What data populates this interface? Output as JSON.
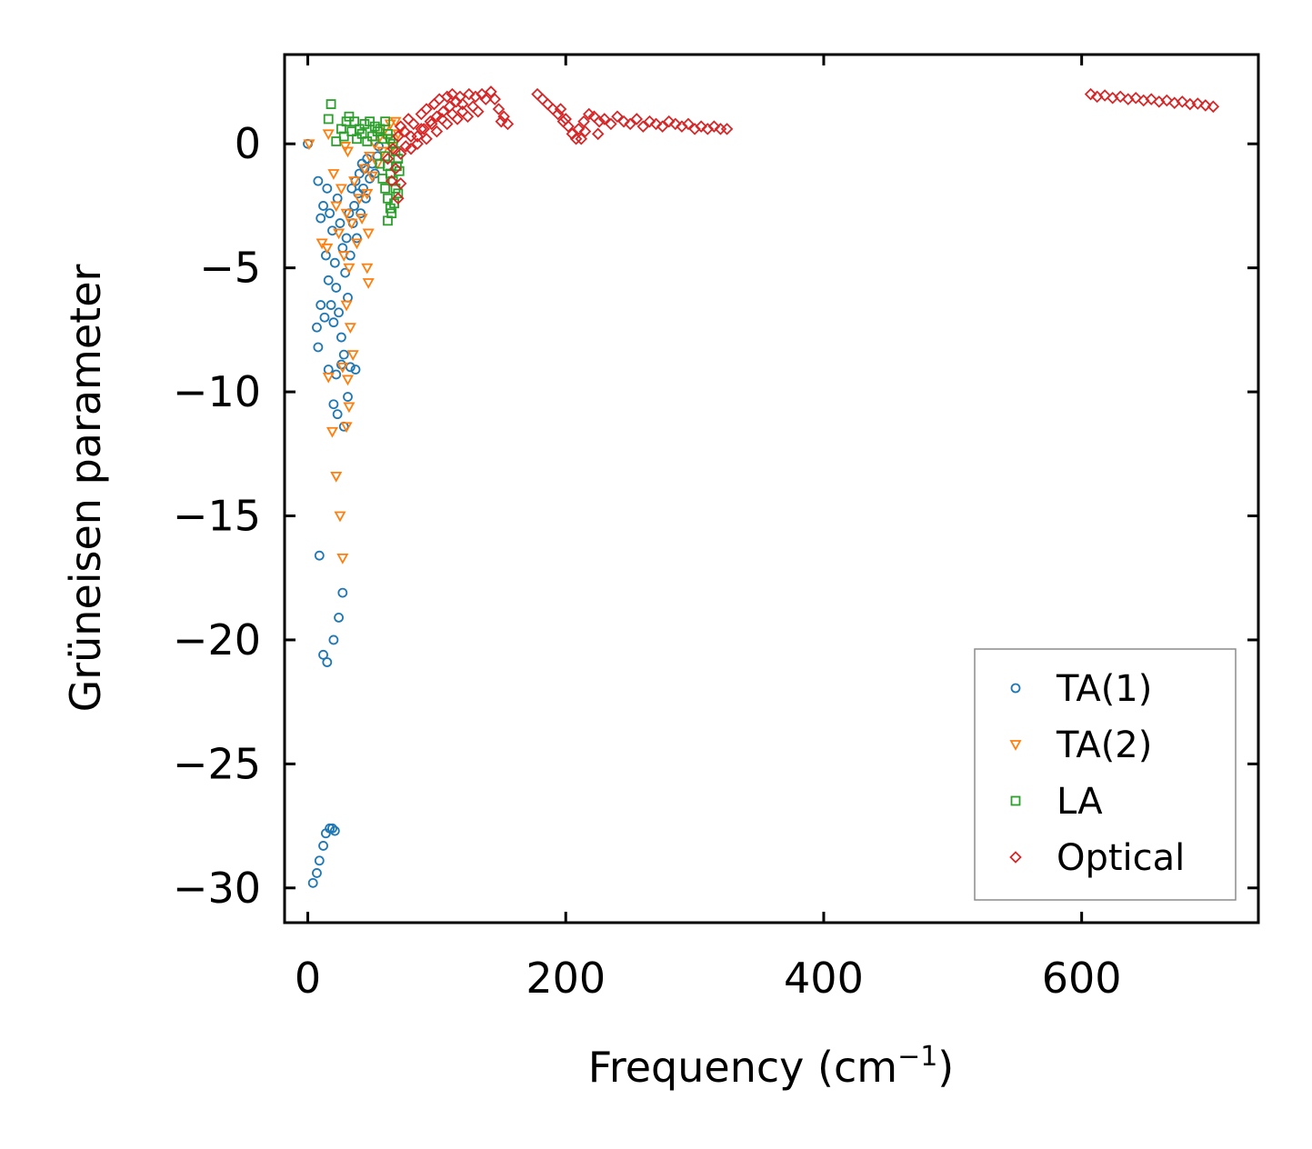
{
  "chart_data": {
    "type": "scatter",
    "title": "",
    "xlabel": "Frequency",
    "xlabel_unit_base": "cm",
    "xlabel_unit_exp": "−1",
    "ylabel": "Grüneisen parameter",
    "xlim": [
      -18,
      737
    ],
    "ylim": [
      -31.4,
      3.6
    ],
    "xticks": [
      0,
      200,
      400,
      600
    ],
    "xtick_labels": [
      "0",
      "200",
      "400",
      "600"
    ],
    "yticks": [
      0,
      -5,
      -10,
      -15,
      -20,
      -25,
      -30
    ],
    "ytick_labels": [
      "0",
      "−5",
      "−10",
      "−15",
      "−20",
      "−25",
      "−30"
    ],
    "grid": false,
    "legend_position": "lower-right",
    "series": [
      {
        "name": "TA(1)",
        "color": "#1f77b4",
        "marker": "circle",
        "points": [
          [
            0,
            0
          ],
          [
            8,
            -1.5
          ],
          [
            10,
            -3
          ],
          [
            12,
            -2.5
          ],
          [
            14,
            -4.5
          ],
          [
            15,
            -1.8
          ],
          [
            16,
            -5.5
          ],
          [
            17,
            -2.8
          ],
          [
            18,
            -6.5
          ],
          [
            19,
            -3.5
          ],
          [
            20,
            -7.2
          ],
          [
            21,
            -4.8
          ],
          [
            22,
            -5.8
          ],
          [
            23,
            -2.2
          ],
          [
            24,
            -6.8
          ],
          [
            25,
            -3.2
          ],
          [
            26,
            -7.8
          ],
          [
            27,
            -4.2
          ],
          [
            28,
            -8.5
          ],
          [
            29,
            -5.2
          ],
          [
            30,
            -3.8
          ],
          [
            31,
            -6.2
          ],
          [
            32,
            -2.8
          ],
          [
            33,
            -4.5
          ],
          [
            34,
            -1.8
          ],
          [
            35,
            -3.2
          ],
          [
            36,
            -2.5
          ],
          [
            37,
            -1.5
          ],
          [
            38,
            -3.8
          ],
          [
            39,
            -2.0
          ],
          [
            40,
            -1.2
          ],
          [
            41,
            -2.8
          ],
          [
            42,
            -0.8
          ],
          [
            43,
            -1.8
          ],
          [
            44,
            -1.0
          ],
          [
            45,
            -2.2
          ],
          [
            46,
            -0.6
          ],
          [
            48,
            -1.4
          ],
          [
            50,
            -0.8
          ],
          [
            52,
            -1.2
          ],
          [
            54,
            -0.5
          ],
          [
            55,
            -0.1
          ],
          [
            7,
            -7.4
          ],
          [
            8,
            -8.2
          ],
          [
            10,
            -6.5
          ],
          [
            13,
            -7.0
          ],
          [
            16,
            -9.1
          ],
          [
            22,
            -9.3
          ],
          [
            26,
            -8.9
          ],
          [
            33,
            -9.0
          ],
          [
            37,
            -9.1
          ],
          [
            20,
            -10.5
          ],
          [
            23,
            -10.9
          ],
          [
            28,
            -11.4
          ],
          [
            31,
            -10.2
          ],
          [
            9,
            -16.6
          ],
          [
            27,
            -18.1
          ],
          [
            24,
            -19.1
          ],
          [
            20,
            -20.0
          ],
          [
            12,
            -20.6
          ],
          [
            15,
            -20.9
          ],
          [
            17,
            -27.6
          ],
          [
            19,
            -27.6
          ],
          [
            21,
            -27.7
          ],
          [
            14,
            -27.8
          ],
          [
            12,
            -28.3
          ],
          [
            9,
            -28.9
          ],
          [
            7,
            -29.4
          ],
          [
            4,
            -29.8
          ]
        ]
      },
      {
        "name": "TA(2)",
        "color": "#ff7f0e",
        "marker": "triangle-down",
        "points": [
          [
            1,
            0.0
          ],
          [
            16,
            0.4
          ],
          [
            20,
            -1.2
          ],
          [
            22,
            -2.5
          ],
          [
            24,
            -3.6
          ],
          [
            26,
            -1.8
          ],
          [
            28,
            -4.5
          ],
          [
            30,
            -2.8
          ],
          [
            32,
            -5.0
          ],
          [
            34,
            -3.2
          ],
          [
            36,
            -1.5
          ],
          [
            38,
            -4.0
          ],
          [
            40,
            -2.2
          ],
          [
            42,
            -3.0
          ],
          [
            44,
            -1.0
          ],
          [
            46,
            -2.0
          ],
          [
            48,
            -0.5
          ],
          [
            50,
            -1.3
          ],
          [
            52,
            0.0
          ],
          [
            54,
            -0.8
          ],
          [
            56,
            0.3
          ],
          [
            58,
            -0.3
          ],
          [
            60,
            0.6
          ],
          [
            62,
            0.2
          ],
          [
            64,
            0.8
          ],
          [
            66,
            -0.1
          ],
          [
            68,
            0.9
          ],
          [
            70,
            0.4
          ],
          [
            29,
            -0.1
          ],
          [
            31,
            -0.3
          ],
          [
            11,
            -4.0
          ],
          [
            15,
            -4.2
          ],
          [
            46,
            -5.0
          ],
          [
            47,
            -5.6
          ],
          [
            47,
            -3.6
          ],
          [
            30,
            -6.5
          ],
          [
            33,
            -7.4
          ],
          [
            35,
            -8.5
          ],
          [
            27,
            -9.0
          ],
          [
            31,
            -9.5
          ],
          [
            16,
            -9.4
          ],
          [
            32,
            -10.6
          ],
          [
            30,
            -11.4
          ],
          [
            19,
            -11.6
          ],
          [
            22,
            -13.4
          ],
          [
            25,
            -15.0
          ],
          [
            27,
            -16.7
          ]
        ]
      },
      {
        "name": "LA",
        "color": "#2ca02c",
        "marker": "square",
        "points": [
          [
            18,
            1.6
          ],
          [
            16,
            1.0
          ],
          [
            22,
            0.1
          ],
          [
            30,
            0.9
          ],
          [
            32,
            1.1
          ],
          [
            36,
            0.9
          ],
          [
            40,
            0.6
          ],
          [
            44,
            0.8
          ],
          [
            48,
            0.9
          ],
          [
            52,
            0.7
          ],
          [
            56,
            0.6
          ],
          [
            60,
            0.9
          ],
          [
            62,
            0.4
          ],
          [
            64,
            0.2
          ],
          [
            66,
            0.0
          ],
          [
            68,
            -0.3
          ],
          [
            70,
            -0.6
          ],
          [
            62,
            -0.9
          ],
          [
            64,
            -1.2
          ],
          [
            66,
            -1.5
          ],
          [
            68,
            -1.8
          ],
          [
            70,
            -2.0
          ],
          [
            58,
            -1.4
          ],
          [
            60,
            -1.8
          ],
          [
            62,
            -2.2
          ],
          [
            64,
            -2.6
          ],
          [
            62,
            -3.1
          ],
          [
            58,
            0.2
          ],
          [
            54,
            0.5
          ],
          [
            50,
            0.3
          ],
          [
            46,
            0.1
          ],
          [
            42,
            0.4
          ],
          [
            38,
            0.2
          ],
          [
            34,
            0.5
          ],
          [
            28,
            0.3
          ],
          [
            26,
            0.6
          ],
          [
            69,
            -0.9
          ],
          [
            71,
            -1.1
          ],
          [
            67,
            -2.4
          ],
          [
            65,
            -2.8
          ],
          [
            60,
            -0.5
          ],
          [
            56,
            -0.8
          ]
        ]
      },
      {
        "name": "Optical",
        "color": "#d62728",
        "marker": "diamond",
        "points": [
          [
            62,
            -0.6
          ],
          [
            66,
            -0.2
          ],
          [
            70,
            0.3
          ],
          [
            72,
            0.7
          ],
          [
            75,
            0.5
          ],
          [
            78,
            1.0
          ],
          [
            80,
            -0.2
          ],
          [
            82,
            0.8
          ],
          [
            85,
            0.3
          ],
          [
            88,
            1.2
          ],
          [
            90,
            0.6
          ],
          [
            92,
            1.4
          ],
          [
            95,
            0.9
          ],
          [
            98,
            1.6
          ],
          [
            100,
            1.1
          ],
          [
            102,
            1.8
          ],
          [
            105,
            1.3
          ],
          [
            108,
            1.9
          ],
          [
            110,
            1.5
          ],
          [
            112,
            2.0
          ],
          [
            115,
            1.7
          ],
          [
            118,
            1.9
          ],
          [
            120,
            1.6
          ],
          [
            125,
            2.0
          ],
          [
            130,
            1.9
          ],
          [
            135,
            2.0
          ],
          [
            138,
            1.8
          ],
          [
            142,
            2.1
          ],
          [
            145,
            1.8
          ],
          [
            148,
            1.4
          ],
          [
            150,
            0.9
          ],
          [
            152,
            1.1
          ],
          [
            155,
            0.8
          ],
          [
            72,
            -0.4
          ],
          [
            76,
            -0.1
          ],
          [
            80,
            0.3
          ],
          [
            85,
            0.0
          ],
          [
            88,
            0.6
          ],
          [
            92,
            0.2
          ],
          [
            96,
            0.8
          ],
          [
            100,
            0.5
          ],
          [
            104,
            1.0
          ],
          [
            108,
            0.8
          ],
          [
            112,
            1.2
          ],
          [
            116,
            1.0
          ],
          [
            120,
            1.3
          ],
          [
            124,
            1.1
          ],
          [
            128,
            1.5
          ],
          [
            132,
            1.3
          ],
          [
            65,
            -1.5
          ],
          [
            68,
            -1.0
          ],
          [
            70,
            -2.2
          ],
          [
            72,
            -1.6
          ],
          [
            178,
            2.0
          ],
          [
            182,
            1.8
          ],
          [
            186,
            1.6
          ],
          [
            190,
            1.4
          ],
          [
            194,
            1.2
          ],
          [
            198,
            0.9
          ],
          [
            202,
            0.7
          ],
          [
            205,
            0.4
          ],
          [
            208,
            0.2
          ],
          [
            210,
            0.6
          ],
          [
            214,
            0.9
          ],
          [
            218,
            1.2
          ],
          [
            222,
            1.1
          ],
          [
            226,
            0.9
          ],
          [
            230,
            1.0
          ],
          [
            235,
            0.8
          ],
          [
            240,
            1.1
          ],
          [
            245,
            0.9
          ],
          [
            250,
            0.8
          ],
          [
            255,
            1.0
          ],
          [
            260,
            0.7
          ],
          [
            265,
            0.9
          ],
          [
            270,
            0.8
          ],
          [
            275,
            0.7
          ],
          [
            280,
            0.9
          ],
          [
            285,
            0.8
          ],
          [
            290,
            0.7
          ],
          [
            295,
            0.8
          ],
          [
            300,
            0.6
          ],
          [
            305,
            0.7
          ],
          [
            310,
            0.6
          ],
          [
            315,
            0.7
          ],
          [
            320,
            0.6
          ],
          [
            325,
            0.6
          ],
          [
            200,
            1.0
          ],
          [
            196,
            1.4
          ],
          [
            215,
            0.5
          ],
          [
            225,
            0.4
          ],
          [
            212,
            0.2
          ],
          [
            607,
            2.0
          ],
          [
            612,
            1.9
          ],
          [
            618,
            1.95
          ],
          [
            624,
            1.85
          ],
          [
            630,
            1.9
          ],
          [
            636,
            1.8
          ],
          [
            642,
            1.85
          ],
          [
            648,
            1.75
          ],
          [
            654,
            1.8
          ],
          [
            660,
            1.7
          ],
          [
            666,
            1.75
          ],
          [
            672,
            1.65
          ],
          [
            678,
            1.7
          ],
          [
            684,
            1.6
          ],
          [
            690,
            1.62
          ],
          [
            696,
            1.55
          ],
          [
            702,
            1.5
          ]
        ]
      }
    ]
  },
  "legend": {
    "items": [
      {
        "label": "TA(1)",
        "color": "#1f77b4",
        "marker": "circle"
      },
      {
        "label": "TA(2)",
        "color": "#ff7f0e",
        "marker": "triangle-down"
      },
      {
        "label": "LA",
        "color": "#2ca02c",
        "marker": "square"
      },
      {
        "label": "Optical",
        "color": "#d62728",
        "marker": "diamond"
      }
    ]
  }
}
